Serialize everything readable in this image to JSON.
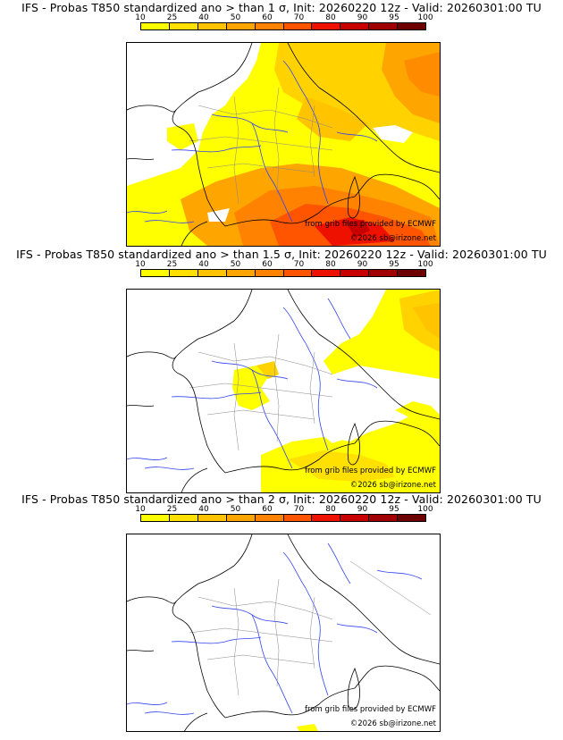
{
  "panels": [
    {
      "title": "IFS - Probas T850  standardized ano > than 1 σ, Init: 20260220 12z - Valid: 20260301:00 TU",
      "threshold": "1 σ",
      "init": "20260220 12z",
      "valid": "20260301:00 TU"
    },
    {
      "title": "IFS - Probas T850  standardized ano > than 1.5 σ, Init: 20260220 12z - Valid: 20260301:00 TU",
      "threshold": "1.5 σ",
      "init": "20260220 12z",
      "valid": "20260301:00 TU"
    },
    {
      "title": "IFS - Probas T850  standardized ano > than 2 σ, Init: 20260220 12z - Valid: 20260301:00 TU",
      "threshold": "2 σ",
      "init": "20260220 12z",
      "valid": "20260301:00 TU"
    }
  ],
  "legend": {
    "ticks": [
      "10",
      "25",
      "40",
      "50",
      "60",
      "70",
      "80",
      "90",
      "95",
      "100"
    ],
    "colors": [
      "#ffff00",
      "#ffe000",
      "#ffc300",
      "#ffa500",
      "#ff8200",
      "#ff5500",
      "#ee1100",
      "#c80000",
      "#a00000",
      "#6e0000"
    ]
  },
  "credits": {
    "data_source": "from grib files provided by ECMWF",
    "copyright": "©2026 sb@irizone.net"
  }
}
